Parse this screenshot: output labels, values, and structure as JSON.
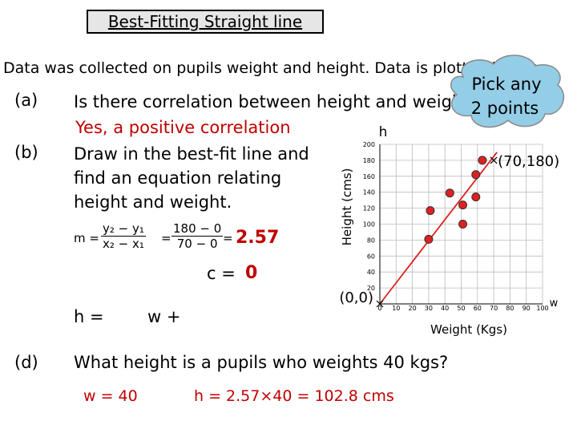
{
  "title": "Best-Fitting Straight line",
  "intro": "Data was collected on pupils weight and height. Data is plotted below",
  "callout": [
    "Pick any",
    "2 points"
  ],
  "questions": [
    {
      "label": "(a)",
      "text": "Is there correlation between height and weight?",
      "answer": "Yes, a positive correlation"
    },
    {
      "label": "(b)",
      "text": [
        "Draw in the best-fit line and",
        "find an equation relating",
        "height and weight."
      ]
    },
    {
      "label": "(d)",
      "text": "What height is a pupils who weights 40 kgs?"
    }
  ],
  "gradient": {
    "lhs": "m =",
    "num1": "y₂ − y₁",
    "den1": "x₂ − x₁",
    "eq": "=",
    "num2": "180 − 0",
    "den2": "70 − 0",
    "result": "2.57"
  },
  "intercept": {
    "label": "c =",
    "value": "0"
  },
  "equation": {
    "h": "h =",
    "w": "w +"
  },
  "working": {
    "given": "w = 40",
    "result": "h = 2.57×40 = 102.8 cms"
  },
  "chart_data": {
    "type": "scatter",
    "x_label": "Weight (Kgs)",
    "y_label": "Height (cms)",
    "x_var": "w",
    "y_var": "h",
    "x": [
      30,
      31,
      43,
      51,
      51,
      59,
      59,
      63
    ],
    "y": [
      81,
      117,
      139,
      100,
      124,
      134,
      162,
      180
    ],
    "color": "#e02020",
    "xlim": [
      0,
      100
    ],
    "ylim": [
      0,
      200
    ],
    "xticks": [
      0,
      10,
      20,
      30,
      40,
      50,
      60,
      70,
      80,
      90,
      100
    ],
    "yticks": [
      20,
      40,
      60,
      80,
      100,
      120,
      140,
      160,
      180,
      200
    ],
    "grid": true,
    "annotations": [
      {
        "text": "(0,0)",
        "x": 0,
        "y": 0
      },
      {
        "text": "(70,180)",
        "x": 70,
        "y": 180
      }
    ]
  }
}
